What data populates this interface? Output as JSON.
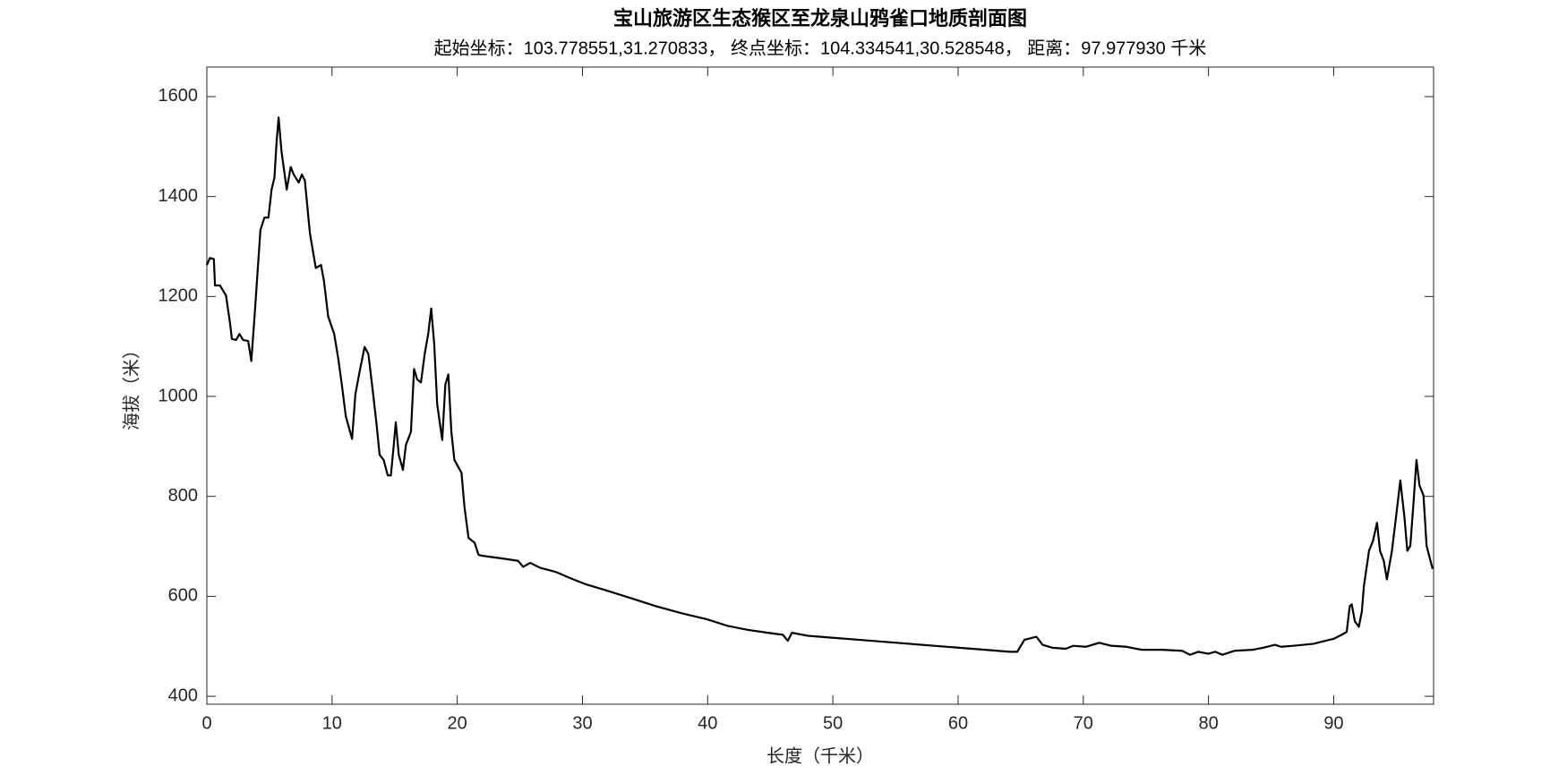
{
  "chart_data": {
    "type": "line",
    "title": "宝山旅游区生态猴区至龙泉山鸦雀口地质剖面图",
    "subtitle": "起始坐标：103.778551,31.270833， 终点坐标：104.334541,30.528548， 距离：97.977930 千米",
    "x_label": "长度（千米）",
    "y_label": "海拔（米）",
    "xlim": [
      0,
      97.97793
    ],
    "ylim": [
      384,
      1659
    ],
    "xticks": [
      0,
      10,
      20,
      30,
      40,
      50,
      60,
      70,
      80,
      90
    ],
    "yticks": [
      400,
      600,
      800,
      1000,
      1200,
      1400,
      1600
    ],
    "series": [
      {
        "color": "#000000",
        "x": [
          0,
          0.24,
          0.56,
          0.65,
          1.05,
          1.53,
          1.86,
          2.0,
          2.34,
          2.6,
          2.9,
          3.3,
          3.55,
          3.8,
          4.1,
          4.28,
          4.6,
          4.92,
          5.17,
          5.4,
          5.57,
          5.73,
          5.97,
          6.38,
          6.7,
          6.94,
          7.34,
          7.59,
          7.83,
          8.23,
          8.7,
          9.12,
          9.36,
          9.69,
          10.17,
          10.5,
          10.8,
          11.1,
          11.6,
          11.86,
          12.19,
          12.6,
          12.9,
          13.24,
          13.56,
          13.8,
          14.12,
          14.45,
          14.7,
          14.93,
          15.09,
          15.33,
          15.66,
          15.9,
          16.3,
          16.55,
          16.8,
          17.1,
          17.4,
          17.68,
          17.92,
          18.16,
          18.4,
          18.8,
          19.05,
          19.29,
          19.53,
          19.77,
          20.34,
          20.58,
          20.9,
          21.39,
          21.7,
          22.03,
          23.8,
          24.86,
          25.26,
          25.83,
          26.63,
          27.85,
          29.06,
          30.27,
          31.88,
          33.9,
          35.9,
          37.93,
          39.95,
          41.57,
          43.18,
          44.8,
          46.0,
          46.4,
          46.73,
          48.02,
          50.04,
          52.06,
          54.08,
          56.1,
          58.1,
          60.1,
          62.15,
          64.16,
          64.73,
          65.3,
          65.94,
          66.26,
          66.75,
          67.55,
          68.6,
          69.2,
          70.2,
          71.27,
          72.24,
          73.45,
          74.66,
          76.27,
          77.89,
          78.53,
          79.18,
          79.98,
          80.55,
          81.11,
          82.08,
          83.53,
          84.34,
          85.31,
          85.8,
          86.76,
          88.38,
          89.35,
          90,
          90.64,
          91.04,
          91.28,
          91.44,
          91.69,
          92.01,
          92.25,
          92.41,
          92.82,
          93.14,
          93.46,
          93.7,
          94.0,
          94.25,
          94.65,
          94.99,
          95.32,
          95.64,
          95.88,
          96.12,
          96.36,
          96.61,
          96.85,
          97.17,
          97.42,
          97.9
        ],
        "values": [
          1263,
          1277,
          1275,
          1222,
          1222,
          1202,
          1145,
          1115,
          1113,
          1125,
          1113,
          1111,
          1071,
          1156,
          1267,
          1333,
          1358,
          1358,
          1414,
          1438,
          1509,
          1558,
          1489,
          1414,
          1459,
          1444,
          1428,
          1444,
          1432,
          1327,
          1257,
          1263,
          1230,
          1160,
          1125,
          1075,
          1020,
          960,
          915,
          1004,
          1048,
          1099,
          1085,
          1014,
          943,
          883,
          873,
          842,
          842,
          903,
          948,
          883,
          853,
          903,
          929,
          1055,
          1034,
          1028,
          1085,
          1125,
          1176,
          1105,
          984,
          913,
          1024,
          1044,
          929,
          873,
          847,
          778,
          717,
          707,
          683,
          681,
          675,
          671,
          659,
          667,
          657,
          649,
          636,
          624,
          612,
          596,
          580,
          566,
          554,
          541,
          533,
          527,
          523,
          511,
          527,
          521,
          517,
          513,
          509,
          505,
          501,
          497,
          493,
          489,
          489,
          513,
          517,
          519,
          503,
          497,
          495,
          501,
          499,
          507,
          501,
          499,
          493,
          493,
          491,
          483,
          489,
          485,
          489,
          483,
          491,
          493,
          497,
          503,
          499,
          501,
          505,
          511,
          515,
          523,
          529,
          580,
          584,
          550,
          539,
          570,
          620,
          691,
          711,
          747,
          691,
          671,
          634,
          691,
          761,
          832,
          761,
          691,
          701,
          782,
          873,
          822,
          802,
          701,
          655
        ]
      }
    ]
  }
}
